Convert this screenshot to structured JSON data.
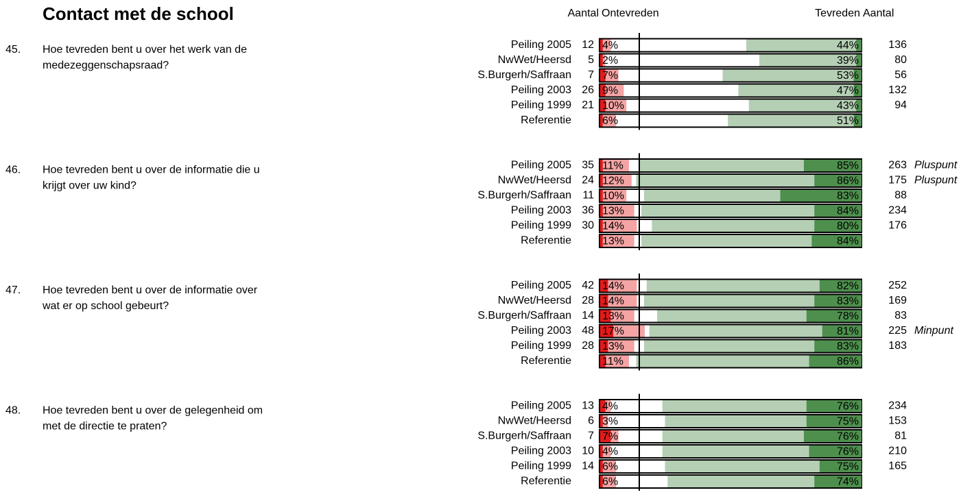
{
  "header": {
    "title": "Contact met de school",
    "col_count_left": "Aantal",
    "col_dissatisfied": "Ontevreden",
    "col_satisfied": "Tevreden",
    "col_count_right": "Aantal"
  },
  "chart_data": [
    {
      "type": "diverging-bar",
      "number": "45.",
      "question_lines": [
        "Hoe tevreden bent u over het werk van de",
        "medezeggenschapsraad?"
      ],
      "categories": [
        "Peiling 2005",
        "NwWet/Heersd",
        "S.Burgerh/Saffraan",
        "Peiling 2003",
        "Peiling 1999",
        "Referentie"
      ],
      "count_dissatisfied": [
        12,
        5,
        7,
        26,
        21,
        null
      ],
      "dissatisfied": {
        "color": "#f4a4a4",
        "values": [
          4,
          2,
          7,
          9,
          10,
          6
        ],
        "value_labels": [
          "4%",
          "2%",
          "7%",
          "9%",
          "10%",
          "6%"
        ]
      },
      "very_dissatisfied": {
        "color": "#e41a1a",
        "values": [
          1,
          1,
          2,
          2,
          2,
          1
        ]
      },
      "satisfied": {
        "color": "#b5cfb5",
        "values": [
          44,
          39,
          53,
          47,
          43,
          51
        ],
        "value_labels": [
          "44%",
          "39%",
          "53%",
          "47%",
          "43%",
          "51%"
        ]
      },
      "very_satisfied": {
        "color": "#4e8f4e",
        "values": [
          2,
          2,
          3,
          3,
          2,
          3
        ]
      },
      "count_satisfied": [
        136,
        80,
        56,
        132,
        94,
        null
      ],
      "notes": [
        null,
        null,
        null,
        null,
        null,
        null
      ]
    },
    {
      "type": "diverging-bar",
      "number": "46.",
      "question_lines": [
        "Hoe tevreden bent u over de informatie die u",
        "krijgt over uw kind?"
      ],
      "categories": [
        "Peiling 2005",
        "NwWet/Heersd",
        "S.Burgerh/Saffraan",
        "Peiling 2003",
        "Peiling 1999",
        "Referentie"
      ],
      "count_dissatisfied": [
        35,
        24,
        11,
        36,
        30,
        null
      ],
      "dissatisfied": {
        "color": "#f4a4a4",
        "values": [
          11,
          12,
          10,
          13,
          14,
          13
        ],
        "value_labels": [
          "11%",
          "12%",
          "10%",
          "13%",
          "14%",
          "13%"
        ]
      },
      "very_dissatisfied": {
        "color": "#e41a1a",
        "values": [
          1,
          1,
          1,
          1,
          1,
          1
        ]
      },
      "satisfied": {
        "color": "#b5cfb5",
        "values": [
          85,
          86,
          83,
          84,
          80,
          84
        ],
        "value_labels": [
          "85%",
          "86%",
          "83%",
          "84%",
          "80%",
          "84%"
        ]
      },
      "very_satisfied": {
        "color": "#4e8f4e",
        "values": [
          22,
          18,
          31,
          18,
          18,
          19
        ]
      },
      "count_satisfied": [
        263,
        175,
        88,
        234,
        176,
        null
      ],
      "notes": [
        "Pluspunt",
        "Pluspunt",
        null,
        null,
        null,
        null
      ]
    },
    {
      "type": "diverging-bar",
      "number": "47.",
      "question_lines": [
        "Hoe tevreden bent u over de informatie over",
        "wat er op school gebeurt?"
      ],
      "categories": [
        "Peiling 2005",
        "NwWet/Heersd",
        "S.Burgerh/Saffraan",
        "Peiling 2003",
        "Peiling 1999",
        "Referentie"
      ],
      "count_dissatisfied": [
        42,
        28,
        14,
        48,
        28,
        null
      ],
      "dissatisfied": {
        "color": "#f4a4a4",
        "values": [
          14,
          14,
          13,
          17,
          13,
          11
        ],
        "value_labels": [
          "14%",
          "14%",
          "13%",
          "17%",
          "13%",
          "11%"
        ]
      },
      "very_dissatisfied": {
        "color": "#e41a1a",
        "values": [
          3,
          3,
          4,
          5,
          3,
          2
        ]
      },
      "satisfied": {
        "color": "#b5cfb5",
        "values": [
          82,
          83,
          78,
          81,
          83,
          86
        ],
        "value_labels": [
          "82%",
          "83%",
          "78%",
          "81%",
          "83%",
          "86%"
        ]
      },
      "very_satisfied": {
        "color": "#4e8f4e",
        "values": [
          16,
          18,
          21,
          15,
          18,
          20
        ]
      },
      "count_satisfied": [
        252,
        169,
        83,
        225,
        183,
        null
      ],
      "notes": [
        null,
        null,
        null,
        "Minpunt",
        null,
        null
      ]
    },
    {
      "type": "diverging-bar",
      "number": "48.",
      "question_lines": [
        "Hoe tevreden bent u over de gelegenheid om",
        "met de directie te praten?"
      ],
      "categories": [
        "Peiling 2005",
        "NwWet/Heersd",
        "S.Burgerh/Saffraan",
        "Peiling 2003",
        "Peiling 1999",
        "Referentie"
      ],
      "count_dissatisfied": [
        13,
        6,
        7,
        10,
        14,
        null
      ],
      "dissatisfied": {
        "color": "#f4a4a4",
        "values": [
          4,
          3,
          7,
          4,
          6,
          6
        ],
        "value_labels": [
          "4%",
          "3%",
          "7%",
          "4%",
          "6%",
          "6%"
        ]
      },
      "very_dissatisfied": {
        "color": "#e41a1a",
        "values": [
          2,
          1,
          4,
          1,
          1,
          1
        ]
      },
      "satisfied": {
        "color": "#b5cfb5",
        "values": [
          76,
          75,
          76,
          76,
          75,
          74
        ],
        "value_labels": [
          "76%",
          "75%",
          "76%",
          "76%",
          "75%",
          "74%"
        ]
      },
      "very_satisfied": {
        "color": "#4e8f4e",
        "values": [
          21,
          21,
          22,
          20,
          16,
          18
        ]
      },
      "count_satisfied": [
        234,
        153,
        81,
        210,
        165,
        null
      ],
      "notes": [
        null,
        null,
        null,
        null,
        null,
        null
      ]
    }
  ]
}
